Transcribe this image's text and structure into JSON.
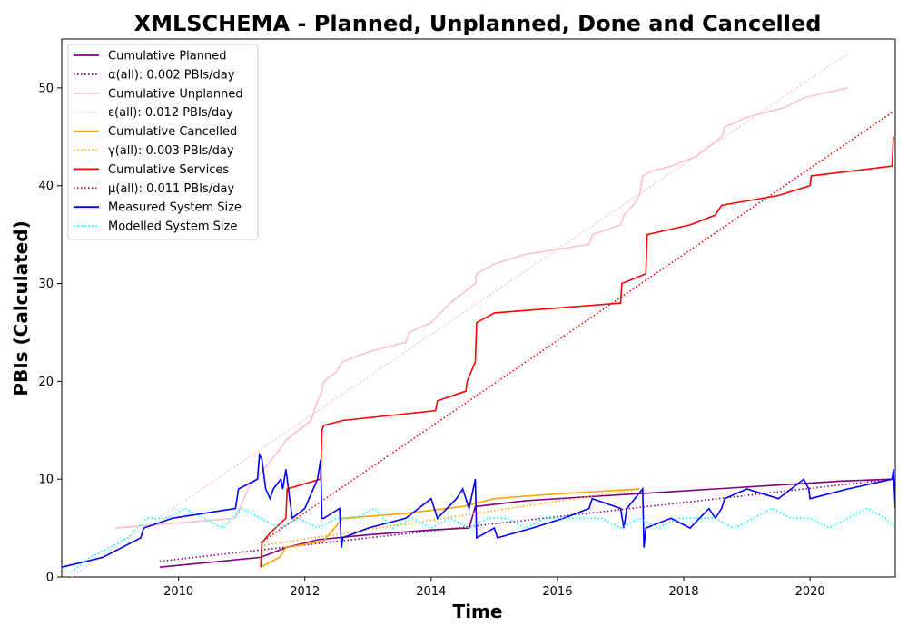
{
  "chart_data": {
    "type": "line",
    "title": "XMLSCHEMA - Planned, Unplanned, Done  and Cancelled",
    "xlabel": "Time",
    "ylabel": "PBIs (Calculated)",
    "xlim": [
      2008.15,
      2021.35
    ],
    "ylim": [
      0,
      55
    ],
    "x_ticks": [
      2010,
      2012,
      2014,
      2016,
      2018,
      2020
    ],
    "x_tick_labels": [
      "2010",
      "2012",
      "2014",
      "2016",
      "2018",
      "2020"
    ],
    "y_ticks": [
      0,
      10,
      20,
      30,
      40,
      50
    ],
    "y_tick_labels": [
      "0",
      "10",
      "20",
      "30",
      "40",
      "50"
    ],
    "grid": false,
    "legend_position": "upper-left",
    "series": [
      {
        "name": "Cumulative Planned",
        "color": "#800080",
        "style": "solid",
        "x": [
          2009.7,
          2011.3,
          2011.7,
          2012.2,
          2013.0,
          2014.0,
          2014.6,
          2014.7,
          2015.5,
          2016.5,
          2017.5,
          2018.5,
          2019.5,
          2020.5,
          2021.3
        ],
        "y": [
          1,
          2,
          3,
          3.8,
          4.3,
          4.8,
          5.0,
          7.2,
          7.8,
          8.2,
          8.6,
          9.0,
          9.4,
          9.8,
          10
        ]
      },
      {
        "name": "α(all): 0.002 PBIs/day",
        "color": "#800080",
        "style": "dotted",
        "x": [
          2009.7,
          2021.3
        ],
        "y": [
          1.6,
          10
        ]
      },
      {
        "name": "Cumulative Unplanned",
        "color": "#ffc0cb",
        "style": "solid",
        "x": [
          2009.0,
          2010.9,
          2011.1,
          2011.6,
          2011.7,
          2012.1,
          2012.2,
          2012.27,
          2012.3,
          2012.5,
          2012.6,
          2013.0,
          2013.6,
          2013.65,
          2014.0,
          2014.3,
          2014.5,
          2014.7,
          2014.72,
          2015.0,
          2015.5,
          2016.0,
          2016.5,
          2016.55,
          2017.0,
          2017.05,
          2017.2,
          2017.3,
          2017.35,
          2017.5,
          2017.8,
          2018.2,
          2018.6,
          2018.65,
          2019.0,
          2019.3,
          2019.6,
          2019.9,
          2020.1,
          2020.6
        ],
        "y": [
          5,
          6,
          9,
          13,
          14,
          16,
          18,
          19,
          20,
          21,
          22,
          23,
          24,
          25,
          26,
          28,
          29,
          30,
          31,
          32,
          33,
          33.5,
          34,
          35,
          36,
          37,
          38,
          39,
          41,
          41.5,
          42,
          43,
          45,
          46,
          47,
          47.5,
          48,
          49,
          49.3,
          50
        ]
      },
      {
        "name": "ε(all): 0.012 PBIs/day",
        "color": "#ffc0cb",
        "style": "dotted",
        "x": [
          2008.3,
          2020.6
        ],
        "y": [
          0,
          53.5
        ]
      },
      {
        "name": "Cumulative Cancelled",
        "color": "#ffa500",
        "style": "solid",
        "x": [
          2011.3,
          2011.6,
          2011.7,
          2012.3,
          2012.6,
          2013.6,
          2014.5,
          2015.0,
          2016.0,
          2017.3
        ],
        "y": [
          1,
          2,
          3,
          3.7,
          6,
          6.5,
          7.2,
          8,
          8.5,
          9
        ]
      },
      {
        "name": "γ(all): 0.003 PBIs/day",
        "color": "#ffa500",
        "style": "dotted",
        "x": [
          2011.3,
          2017.3
        ],
        "y": [
          3.2,
          9
        ]
      },
      {
        "name": "Cumulative Services",
        "color": "#ff0000",
        "style": "solid",
        "x": [
          2011.3,
          2011.32,
          2011.45,
          2011.7,
          2011.72,
          2012.25,
          2012.27,
          2012.3,
          2012.6,
          2014.07,
          2014.1,
          2014.55,
          2014.57,
          2014.7,
          2014.72,
          2015.0,
          2017.0,
          2017.02,
          2017.4,
          2017.42,
          2018.1,
          2018.5,
          2018.6,
          2019.5,
          2020.0,
          2020.02,
          2021.3,
          2021.32
        ],
        "y": [
          1,
          3.5,
          4.5,
          6,
          9,
          10,
          15,
          15.5,
          16,
          17,
          18,
          19,
          20,
          22,
          26,
          27,
          28,
          30,
          31,
          35,
          36,
          37,
          38,
          39,
          40,
          41,
          42,
          45
        ]
      },
      {
        "name": "μ(all): 0.011 PBIs/day",
        "color": "#ff0000",
        "style": "dotted",
        "x": [
          2011.3,
          2021.3
        ],
        "y": [
          3.5,
          47.5
        ]
      },
      {
        "name": "Measured System Size",
        "color": "#0000ff",
        "style": "solid",
        "x": [
          2008.15,
          2008.8,
          2009.4,
          2009.45,
          2009.9,
          2010.9,
          2010.95,
          2011.25,
          2011.28,
          2011.32,
          2011.38,
          2011.45,
          2011.5,
          2011.62,
          2011.65,
          2011.7,
          2011.72,
          2011.8,
          2012.0,
          2012.2,
          2012.25,
          2012.27,
          2012.3,
          2012.55,
          2012.58,
          2012.6,
          2013.0,
          2013.6,
          2014.0,
          2014.05,
          2014.1,
          2014.4,
          2014.5,
          2014.55,
          2014.6,
          2014.7,
          2014.72,
          2015.0,
          2015.05,
          2015.6,
          2016.1,
          2016.5,
          2016.55,
          2017.0,
          2017.05,
          2017.1,
          2017.35,
          2017.37,
          2017.4,
          2017.8,
          2018.1,
          2018.4,
          2018.5,
          2018.6,
          2018.65,
          2019.0,
          2019.5,
          2019.9,
          2019.98,
          2020.0,
          2020.6,
          2021.3,
          2021.32,
          2021.35
        ],
        "y": [
          1,
          2,
          4,
          5,
          6,
          7,
          9,
          10,
          12.5,
          12,
          9,
          8,
          9,
          10,
          9,
          11,
          10,
          6,
          7,
          10,
          12,
          6,
          6,
          7,
          3,
          4,
          5,
          6,
          8,
          7,
          6,
          8,
          9,
          8,
          7,
          10,
          4,
          5,
          4,
          5,
          6,
          7,
          8,
          7,
          5,
          7,
          9,
          3,
          5,
          6,
          5,
          7,
          6,
          7,
          8,
          9,
          8,
          10,
          9,
          8,
          9,
          10,
          11,
          7
        ]
      },
      {
        "name": "Modelled System Size",
        "color": "#00ffff",
        "style": "dotted",
        "x": [
          2008.3,
          2008.6,
          2008.9,
          2009.2,
          2009.5,
          2009.8,
          2010.1,
          2010.4,
          2010.7,
          2011.0,
          2011.3,
          2011.6,
          2011.9,
          2012.2,
          2012.5,
          2012.8,
          2013.1,
          2013.4,
          2013.7,
          2014.0,
          2014.3,
          2014.6,
          2014.9,
          2015.2,
          2015.5,
          2015.8,
          2016.1,
          2016.4,
          2016.7,
          2017.0,
          2017.3,
          2017.6,
          2017.9,
          2018.2,
          2018.5,
          2018.8,
          2019.1,
          2019.4,
          2019.7,
          2020.0,
          2020.3,
          2020.6,
          2020.9,
          2021.2,
          2021.35
        ],
        "y": [
          0.5,
          2,
          3,
          4,
          6,
          6,
          7,
          6,
          5,
          7,
          6,
          5,
          6,
          5,
          6,
          6,
          7,
          5,
          6,
          5,
          6,
          5,
          6,
          6,
          5,
          6,
          6,
          6,
          6,
          5,
          6,
          5,
          6,
          6,
          6,
          5,
          6,
          7,
          6,
          6,
          5,
          6,
          7,
          6,
          5
        ]
      }
    ]
  }
}
